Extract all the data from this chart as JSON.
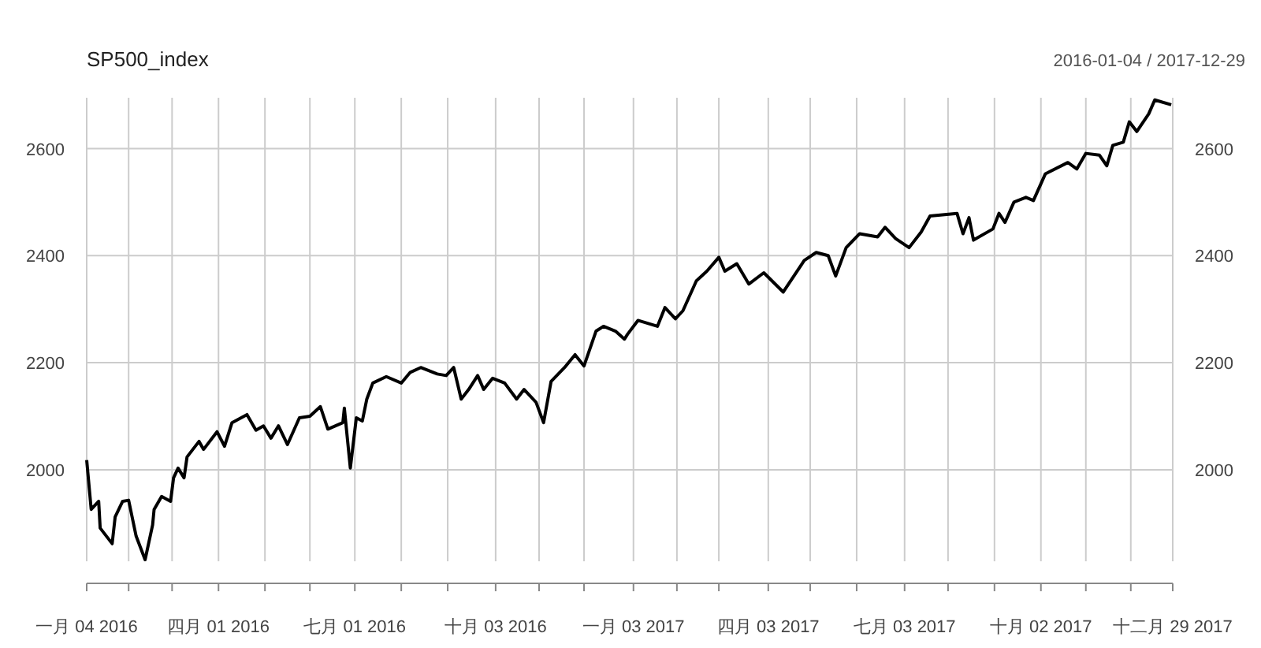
{
  "chart_data": {
    "type": "line",
    "title": "SP500_index",
    "subtitle": "2016-01-04 / 2017-12-29",
    "x": [
      "2016-01-04",
      "2016-01-07",
      "2016-01-12",
      "2016-01-13",
      "2016-01-21",
      "2016-01-23",
      "2016-01-28",
      "2016-02-01",
      "2016-02-06",
      "2016-02-12",
      "2016-02-17",
      "2016-02-18",
      "2016-02-23",
      "2016-02-29",
      "2016-03-02",
      "2016-03-05",
      "2016-03-09",
      "2016-03-11",
      "2016-03-19",
      "2016-03-22",
      "2016-03-31",
      "2016-04-05",
      "2016-04-10",
      "2016-04-20",
      "2016-04-26",
      "2016-05-01",
      "2016-05-06",
      "2016-05-11",
      "2016-05-17",
      "2016-05-25",
      "2016-06-01",
      "2016-06-08",
      "2016-06-13",
      "2016-06-23",
      "2016-06-24",
      "2016-06-28",
      "2016-07-02",
      "2016-07-06",
      "2016-07-09",
      "2016-07-13",
      "2016-07-22",
      "2016-08-01",
      "2016-08-07",
      "2016-08-14",
      "2016-08-25",
      "2016-08-31",
      "2016-09-05",
      "2016-09-10",
      "2016-09-15",
      "2016-09-21",
      "2016-09-25",
      "2016-10-01",
      "2016-10-09",
      "2016-10-17",
      "2016-10-22",
      "2016-10-30",
      "2016-11-04",
      "2016-11-09",
      "2016-11-18",
      "2016-11-25",
      "2016-12-01",
      "2016-12-09",
      "2016-12-14",
      "2016-12-22",
      "2016-12-28",
      "2016-12-30",
      "2017-01-06",
      "2017-01-19",
      "2017-01-24",
      "2017-01-31",
      "2017-02-05",
      "2017-02-14",
      "2017-02-21",
      "2017-03-01",
      "2017-03-05",
      "2017-03-13",
      "2017-03-21",
      "2017-03-31",
      "2017-04-13",
      "2017-04-27",
      "2017-05-05",
      "2017-05-13",
      "2017-05-18",
      "2017-05-25",
      "2017-06-03",
      "2017-06-15",
      "2017-06-20",
      "2017-06-27",
      "2017-07-06",
      "2017-07-14",
      "2017-07-20",
      "2017-08-07",
      "2017-08-11",
      "2017-08-15",
      "2017-08-18",
      "2017-08-31",
      "2017-09-04",
      "2017-09-08",
      "2017-09-14",
      "2017-09-22",
      "2017-09-27",
      "2017-10-05",
      "2017-10-20",
      "2017-10-26",
      "2017-11-01",
      "2017-11-10",
      "2017-11-15",
      "2017-11-19",
      "2017-11-26",
      "2017-11-30",
      "2017-12-05",
      "2017-12-13",
      "2017-12-17",
      "2017-12-28"
    ],
    "series": [
      {
        "color": "#000000",
        "values": [
          2018,
          1926,
          1941,
          1891,
          1862,
          1912,
          1941,
          1943,
          1876,
          1832,
          1897,
          1926,
          1950,
          1941,
          1985,
          2003,
          1985,
          2024,
          2053,
          2038,
          2071,
          2044,
          2088,
          2103,
          2074,
          2082,
          2059,
          2082,
          2047,
          2097,
          2100,
          2118,
          2076,
          2088,
          2115,
          2003,
          2097,
          2091,
          2132,
          2162,
          2174,
          2162,
          2182,
          2191,
          2179,
          2176,
          2191,
          2132,
          2150,
          2176,
          2150,
          2171,
          2162,
          2132,
          2150,
          2126,
          2088,
          2165,
          2191,
          2215,
          2194,
          2259,
          2268,
          2259,
          2244,
          2253,
          2279,
          2268,
          2303,
          2282,
          2297,
          2353,
          2371,
          2397,
          2371,
          2385,
          2347,
          2368,
          2332,
          2391,
          2406,
          2400,
          2362,
          2415,
          2441,
          2435,
          2453,
          2432,
          2415,
          2444,
          2474,
          2479,
          2441,
          2471,
          2429,
          2450,
          2479,
          2462,
          2500,
          2509,
          2503,
          2553,
          2574,
          2562,
          2591,
          2588,
          2568,
          2606,
          2612,
          2650,
          2632,
          2665,
          2691,
          2682
        ]
      }
    ],
    "xlim": [
      "2016-01-04",
      "2017-12-29"
    ],
    "xticks": [
      {
        "value": "2016-01-04",
        "label": "一月 04 2016"
      },
      {
        "value": "2016-02-01",
        "label": null
      },
      {
        "value": "2016-03-01",
        "label": null
      },
      {
        "value": "2016-04-01",
        "label": "四月 01 2016"
      },
      {
        "value": "2016-05-02",
        "label": null
      },
      {
        "value": "2016-06-01",
        "label": null
      },
      {
        "value": "2016-07-01",
        "label": "七月 01 2016"
      },
      {
        "value": "2016-08-01",
        "label": null
      },
      {
        "value": "2016-09-01",
        "label": null
      },
      {
        "value": "2016-10-03",
        "label": "十月 03 2016"
      },
      {
        "value": "2016-11-01",
        "label": null
      },
      {
        "value": "2016-12-01",
        "label": null
      },
      {
        "value": "2017-01-03",
        "label": "一月 03 2017"
      },
      {
        "value": "2017-02-01",
        "label": null
      },
      {
        "value": "2017-03-01",
        "label": null
      },
      {
        "value": "2017-04-03",
        "label": "四月 03 2017"
      },
      {
        "value": "2017-05-01",
        "label": null
      },
      {
        "value": "2017-06-01",
        "label": null
      },
      {
        "value": "2017-07-03",
        "label": "七月 03 2017"
      },
      {
        "value": "2017-08-01",
        "label": null
      },
      {
        "value": "2017-09-01",
        "label": null
      },
      {
        "value": "2017-10-02",
        "label": "十月 02 2017"
      },
      {
        "value": "2017-11-01",
        "label": null
      },
      {
        "value": "2017-12-01",
        "label": null
      },
      {
        "value": "2017-12-29",
        "label": "十二月 29 2017"
      }
    ],
    "ylim": [
      1829,
      2695
    ],
    "yticks": [
      2000,
      2200,
      2400,
      2600
    ],
    "y2lim": [
      1829,
      2695
    ],
    "y2ticks": [
      2000,
      2200,
      2400,
      2600
    ],
    "grid": true,
    "line_style": "solid",
    "marker": "none"
  }
}
